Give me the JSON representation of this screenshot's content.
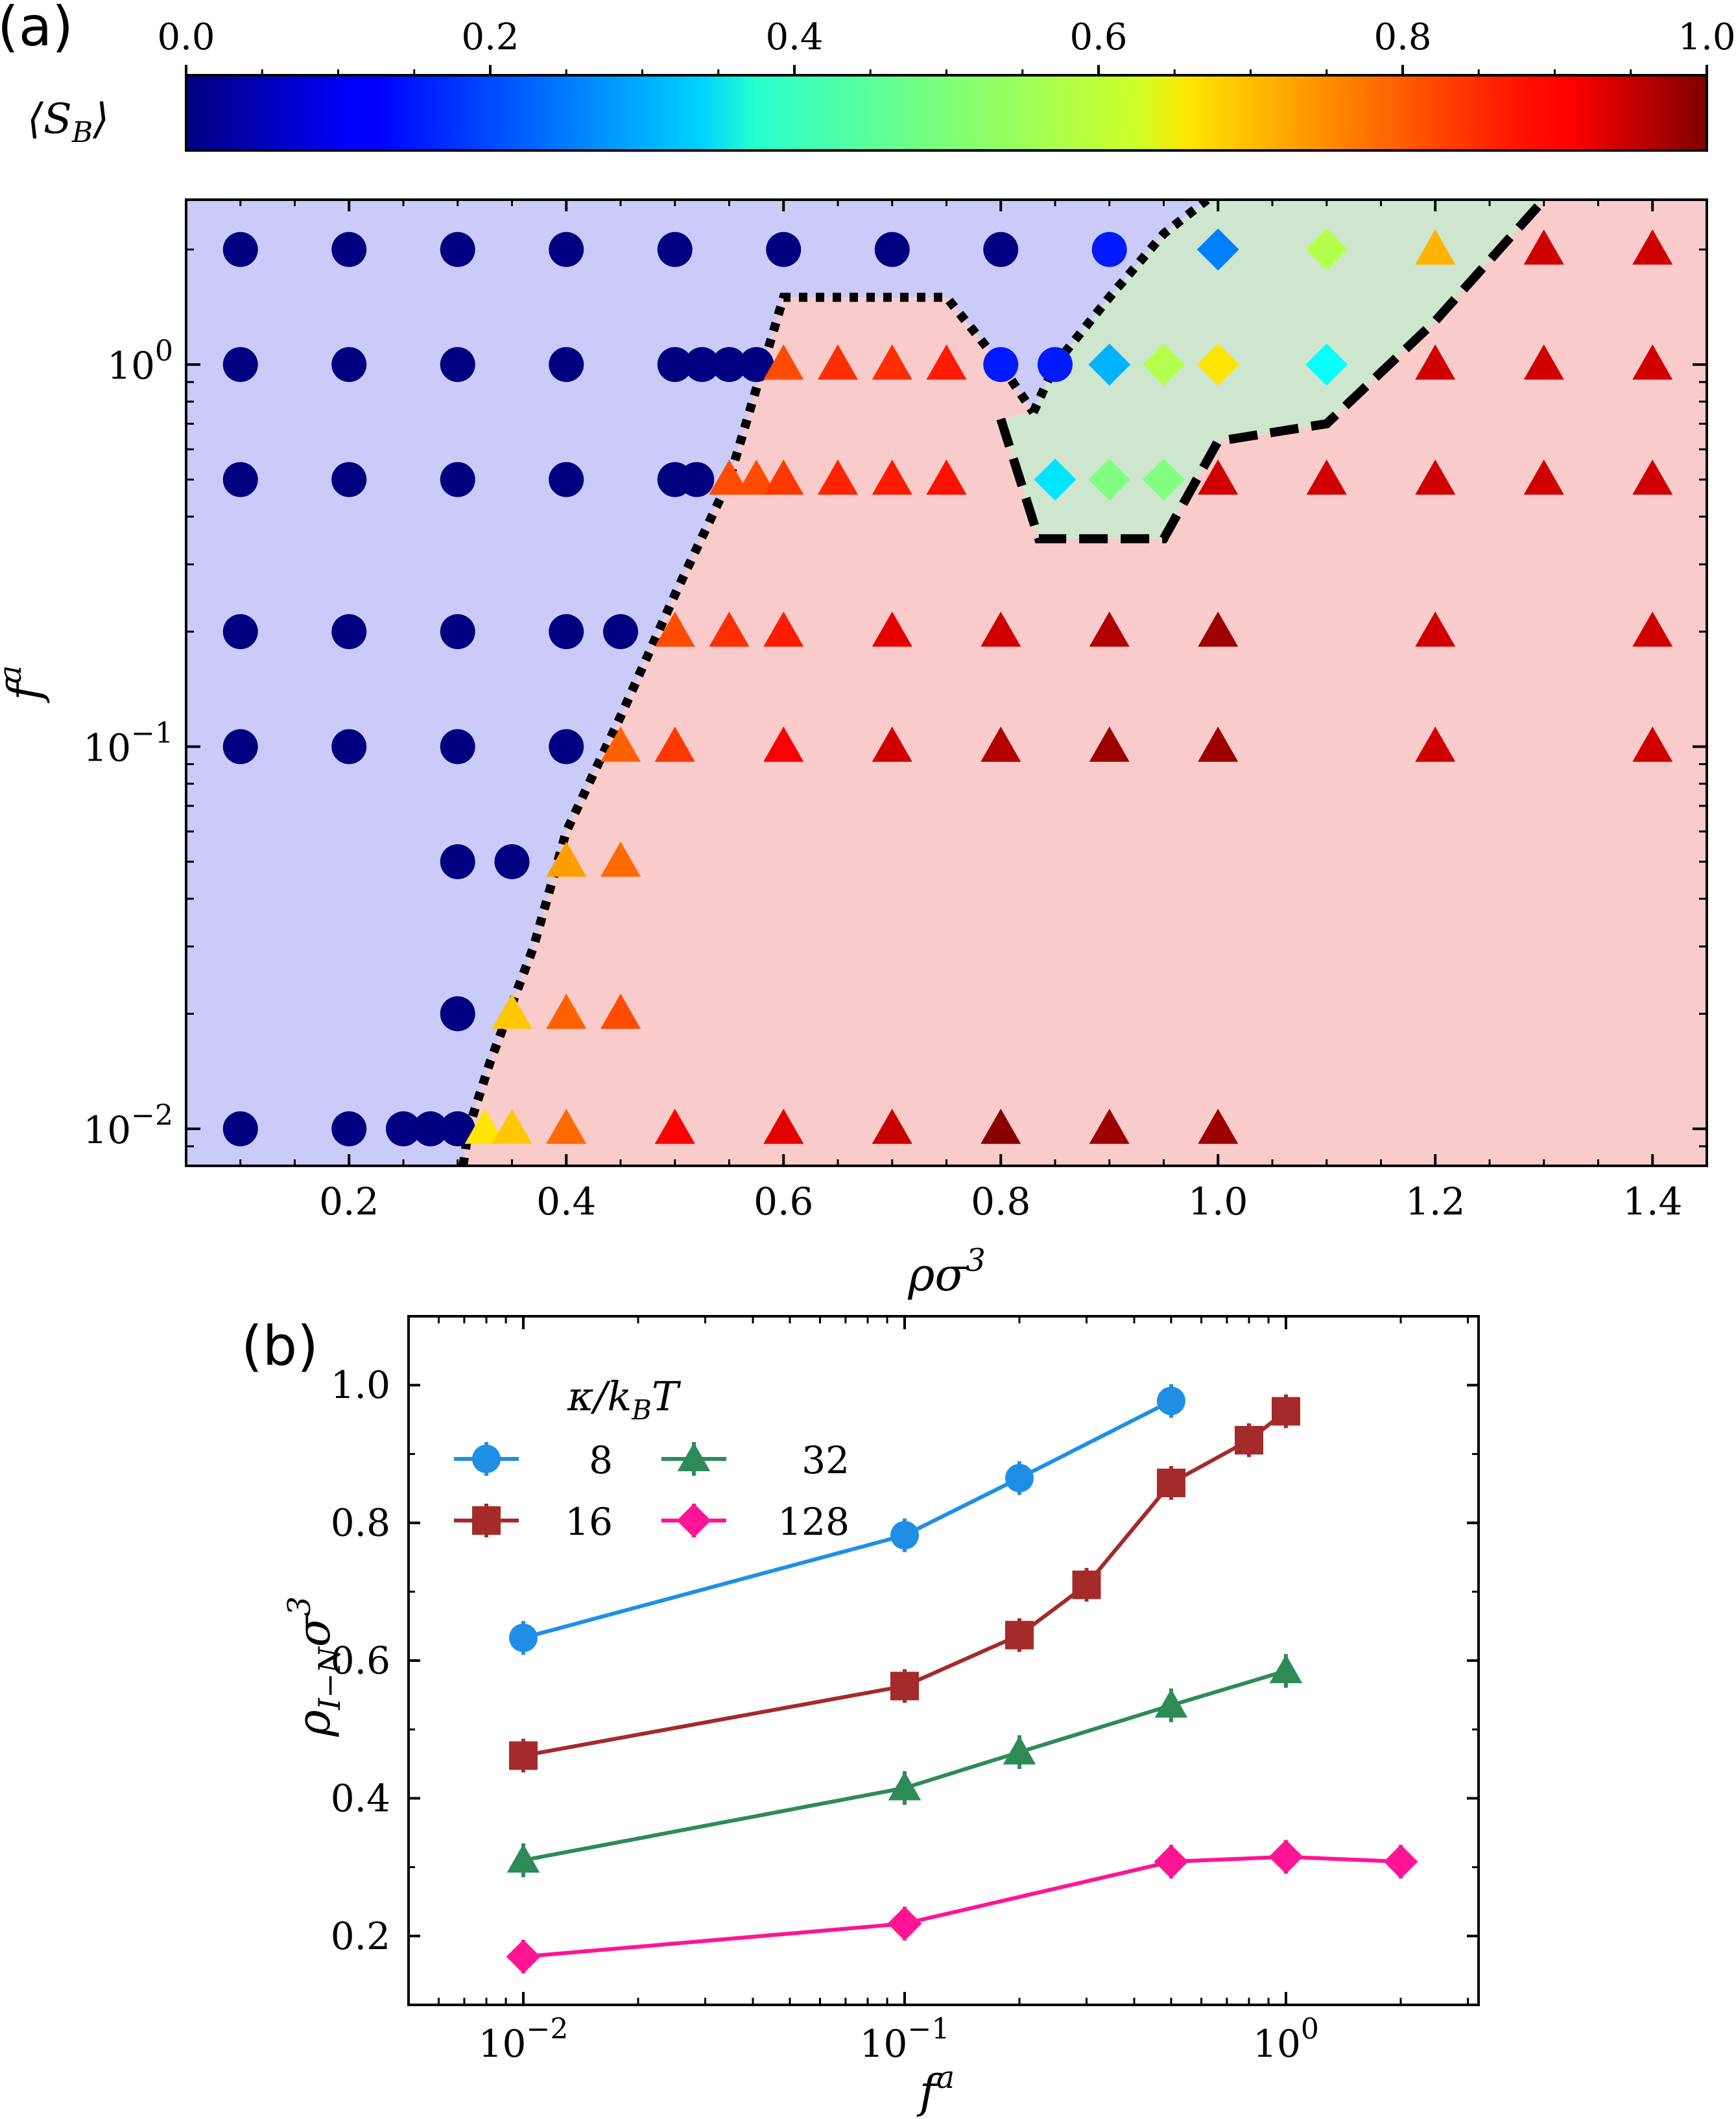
{
  "figure": {
    "panel_a_label": "(a)",
    "panel_b_label": "(b)"
  },
  "chart_data": [
    {
      "type": "scatter",
      "panel": "a",
      "title": "",
      "xlabel": "ρσ",
      "xlabel_sup": "3",
      "ylabel": "f",
      "ylabel_sup": "a",
      "xlim": [
        0.05,
        1.45
      ],
      "ylim": [
        0.008,
        2.7
      ],
      "yscale": "log",
      "x_ticks": [
        0.2,
        0.4,
        0.6,
        0.8,
        1.0,
        1.2,
        1.4
      ],
      "x_tick_labels": [
        "0.2",
        "0.4",
        "0.6",
        "0.8",
        "1.0",
        "1.2",
        "1.4"
      ],
      "y_ticks": [
        {
          "value": 0.01,
          "base": "10",
          "exp": "−2"
        },
        {
          "value": 0.1,
          "base": "10",
          "exp": "−1"
        },
        {
          "value": 1,
          "base": "10",
          "exp": "0"
        }
      ],
      "colorbar": {
        "label": "⟨S",
        "label_sub": "B",
        "label_end": "⟩",
        "range": [
          0.0,
          1.0
        ],
        "colormap": "jet",
        "ticks": [
          0.0,
          0.2,
          0.4,
          0.6,
          0.8,
          1.0
        ],
        "tick_labels": [
          "0.0",
          "0.2",
          "0.4",
          "0.6",
          "0.8",
          "1.0"
        ]
      },
      "regions": {
        "isotropic": {
          "color": "#cbcbf9"
        },
        "nematic": {
          "color": "#f9cbcb"
        },
        "smectic": {
          "color": "#cde6cd"
        }
      },
      "boundaries": {
        "isotropic_nematic": {
          "style": "dotted",
          "x": [
            0.305,
            0.31,
            0.33,
            0.37,
            0.4,
            0.45,
            0.5,
            0.55,
            0.6,
            0.75,
            0.8,
            0.83
          ],
          "y": [
            0.008,
            0.01,
            0.015,
            0.03,
            0.06,
            0.12,
            0.25,
            0.5,
            1.5,
            1.5,
            1.0,
            0.75
          ]
        },
        "upper_smectic": {
          "style": "dotted",
          "x": [
            0.83,
            0.85,
            0.9,
            0.95,
            0.99
          ],
          "y": [
            0.75,
            1.0,
            1.5,
            2.2,
            2.7
          ]
        },
        "smectic_nematic": {
          "style": "dashed",
          "x": [
            0.8,
            0.835,
            0.95,
            1.0,
            1.1,
            1.2,
            1.3
          ],
          "y": [
            0.72,
            0.35,
            0.35,
            0.63,
            0.7,
            1.3,
            2.7
          ]
        }
      },
      "points": [
        {
          "x": 0.1,
          "y": 2,
          "m": "circle",
          "s": 0.0
        },
        {
          "x": 0.2,
          "y": 2,
          "m": "circle",
          "s": 0.0
        },
        {
          "x": 0.3,
          "y": 2,
          "m": "circle",
          "s": 0.0
        },
        {
          "x": 0.4,
          "y": 2,
          "m": "circle",
          "s": 0.0
        },
        {
          "x": 0.5,
          "y": 2,
          "m": "circle",
          "s": 0.0
        },
        {
          "x": 0.6,
          "y": 2,
          "m": "circle",
          "s": 0.0
        },
        {
          "x": 0.7,
          "y": 2,
          "m": "circle",
          "s": 0.0
        },
        {
          "x": 0.8,
          "y": 2,
          "m": "circle",
          "s": 0.0
        },
        {
          "x": 0.9,
          "y": 2,
          "m": "circle",
          "s": 0.15
        },
        {
          "x": 1.0,
          "y": 2,
          "m": "diamond",
          "s": 0.25
        },
        {
          "x": 1.1,
          "y": 2,
          "m": "diamond",
          "s": 0.55
        },
        {
          "x": 1.2,
          "y": 2,
          "m": "triangle",
          "s": 0.7
        },
        {
          "x": 1.3,
          "y": 2,
          "m": "triangle",
          "s": 0.92
        },
        {
          "x": 1.4,
          "y": 2,
          "m": "triangle",
          "s": 0.92
        },
        {
          "x": 0.1,
          "y": 1,
          "m": "circle",
          "s": 0.0
        },
        {
          "x": 0.2,
          "y": 1,
          "m": "circle",
          "s": 0.0
        },
        {
          "x": 0.3,
          "y": 1,
          "m": "circle",
          "s": 0.0
        },
        {
          "x": 0.4,
          "y": 1,
          "m": "circle",
          "s": 0.0
        },
        {
          "x": 0.5,
          "y": 1,
          "m": "circle",
          "s": 0.0
        },
        {
          "x": 0.525,
          "y": 1,
          "m": "circle",
          "s": 0.0
        },
        {
          "x": 0.55,
          "y": 1,
          "m": "circle",
          "s": 0.0
        },
        {
          "x": 0.575,
          "y": 1,
          "m": "circle",
          "s": 0.0
        },
        {
          "x": 0.6,
          "y": 1,
          "m": "triangle",
          "s": 0.8
        },
        {
          "x": 0.65,
          "y": 1,
          "m": "triangle",
          "s": 0.83
        },
        {
          "x": 0.7,
          "y": 1,
          "m": "triangle",
          "s": 0.83
        },
        {
          "x": 0.75,
          "y": 1,
          "m": "triangle",
          "s": 0.85
        },
        {
          "x": 0.8,
          "y": 1,
          "m": "circle",
          "s": 0.15
        },
        {
          "x": 0.85,
          "y": 1,
          "m": "circle",
          "s": 0.15
        },
        {
          "x": 0.9,
          "y": 1,
          "m": "diamond",
          "s": 0.3
        },
        {
          "x": 0.95,
          "y": 1,
          "m": "diamond",
          "s": 0.55
        },
        {
          "x": 1.0,
          "y": 1,
          "m": "diamond",
          "s": 0.65
        },
        {
          "x": 1.1,
          "y": 1,
          "m": "diamond",
          "s": 0.38
        },
        {
          "x": 1.2,
          "y": 1,
          "m": "triangle",
          "s": 0.92
        },
        {
          "x": 1.3,
          "y": 1,
          "m": "triangle",
          "s": 0.92
        },
        {
          "x": 1.4,
          "y": 1,
          "m": "triangle",
          "s": 0.92
        },
        {
          "x": 0.1,
          "y": 0.5,
          "m": "circle",
          "s": 0.0
        },
        {
          "x": 0.2,
          "y": 0.5,
          "m": "circle",
          "s": 0.0
        },
        {
          "x": 0.3,
          "y": 0.5,
          "m": "circle",
          "s": 0.0
        },
        {
          "x": 0.4,
          "y": 0.5,
          "m": "circle",
          "s": 0.0
        },
        {
          "x": 0.5,
          "y": 0.5,
          "m": "circle",
          "s": 0.0
        },
        {
          "x": 0.52,
          "y": 0.5,
          "m": "circle",
          "s": 0.0
        },
        {
          "x": 0.55,
          "y": 0.5,
          "m": "triangle",
          "s": 0.8
        },
        {
          "x": 0.575,
          "y": 0.5,
          "m": "triangle",
          "s": 0.8
        },
        {
          "x": 0.6,
          "y": 0.5,
          "m": "triangle",
          "s": 0.82
        },
        {
          "x": 0.65,
          "y": 0.5,
          "m": "triangle",
          "s": 0.84
        },
        {
          "x": 0.7,
          "y": 0.5,
          "m": "triangle",
          "s": 0.85
        },
        {
          "x": 0.75,
          "y": 0.5,
          "m": "triangle",
          "s": 0.86
        },
        {
          "x": 0.85,
          "y": 0.5,
          "m": "diamond",
          "s": 0.35
        },
        {
          "x": 0.9,
          "y": 0.5,
          "m": "diamond",
          "s": 0.5
        },
        {
          "x": 0.95,
          "y": 0.5,
          "m": "diamond",
          "s": 0.5
        },
        {
          "x": 1.0,
          "y": 0.5,
          "m": "triangle",
          "s": 0.92
        },
        {
          "x": 1.1,
          "y": 0.5,
          "m": "triangle",
          "s": 0.92
        },
        {
          "x": 1.2,
          "y": 0.5,
          "m": "triangle",
          "s": 0.92
        },
        {
          "x": 1.3,
          "y": 0.5,
          "m": "triangle",
          "s": 0.92
        },
        {
          "x": 1.4,
          "y": 0.5,
          "m": "triangle",
          "s": 0.92
        },
        {
          "x": 0.1,
          "y": 0.2,
          "m": "circle",
          "s": 0.0
        },
        {
          "x": 0.2,
          "y": 0.2,
          "m": "circle",
          "s": 0.0
        },
        {
          "x": 0.3,
          "y": 0.2,
          "m": "circle",
          "s": 0.0
        },
        {
          "x": 0.4,
          "y": 0.2,
          "m": "circle",
          "s": 0.0
        },
        {
          "x": 0.45,
          "y": 0.2,
          "m": "circle",
          "s": 0.0
        },
        {
          "x": 0.5,
          "y": 0.2,
          "m": "triangle",
          "s": 0.8
        },
        {
          "x": 0.55,
          "y": 0.2,
          "m": "triangle",
          "s": 0.83
        },
        {
          "x": 0.6,
          "y": 0.2,
          "m": "triangle",
          "s": 0.85
        },
        {
          "x": 0.7,
          "y": 0.2,
          "m": "triangle",
          "s": 0.9
        },
        {
          "x": 0.8,
          "y": 0.2,
          "m": "triangle",
          "s": 0.92
        },
        {
          "x": 0.9,
          "y": 0.2,
          "m": "triangle",
          "s": 0.95
        },
        {
          "x": 1.0,
          "y": 0.2,
          "m": "triangle",
          "s": 0.97
        },
        {
          "x": 1.2,
          "y": 0.2,
          "m": "triangle",
          "s": 0.92
        },
        {
          "x": 1.4,
          "y": 0.2,
          "m": "triangle",
          "s": 0.92
        },
        {
          "x": 0.1,
          "y": 0.1,
          "m": "circle",
          "s": 0.0
        },
        {
          "x": 0.2,
          "y": 0.1,
          "m": "circle",
          "s": 0.0
        },
        {
          "x": 0.3,
          "y": 0.1,
          "m": "circle",
          "s": 0.0
        },
        {
          "x": 0.4,
          "y": 0.1,
          "m": "circle",
          "s": 0.0
        },
        {
          "x": 0.45,
          "y": 0.1,
          "m": "triangle",
          "s": 0.78
        },
        {
          "x": 0.5,
          "y": 0.1,
          "m": "triangle",
          "s": 0.82
        },
        {
          "x": 0.6,
          "y": 0.1,
          "m": "triangle",
          "s": 0.88
        },
        {
          "x": 0.7,
          "y": 0.1,
          "m": "triangle",
          "s": 0.92
        },
        {
          "x": 0.8,
          "y": 0.1,
          "m": "triangle",
          "s": 0.95
        },
        {
          "x": 0.9,
          "y": 0.1,
          "m": "triangle",
          "s": 0.97
        },
        {
          "x": 1.0,
          "y": 0.1,
          "m": "triangle",
          "s": 0.97
        },
        {
          "x": 1.2,
          "y": 0.1,
          "m": "triangle",
          "s": 0.92
        },
        {
          "x": 1.4,
          "y": 0.1,
          "m": "triangle",
          "s": 0.92
        },
        {
          "x": 0.3,
          "y": 0.05,
          "m": "circle",
          "s": 0.0
        },
        {
          "x": 0.35,
          "y": 0.05,
          "m": "circle",
          "s": 0.0
        },
        {
          "x": 0.4,
          "y": 0.05,
          "m": "triangle",
          "s": 0.72
        },
        {
          "x": 0.45,
          "y": 0.05,
          "m": "triangle",
          "s": 0.77
        },
        {
          "x": 0.3,
          "y": 0.02,
          "m": "circle",
          "s": 0.0
        },
        {
          "x": 0.35,
          "y": 0.02,
          "m": "triangle",
          "s": 0.68
        },
        {
          "x": 0.4,
          "y": 0.02,
          "m": "triangle",
          "s": 0.78
        },
        {
          "x": 0.45,
          "y": 0.02,
          "m": "triangle",
          "s": 0.8
        },
        {
          "x": 0.1,
          "y": 0.01,
          "m": "circle",
          "s": 0.0
        },
        {
          "x": 0.2,
          "y": 0.01,
          "m": "circle",
          "s": 0.0
        },
        {
          "x": 0.25,
          "y": 0.01,
          "m": "circle",
          "s": 0.0
        },
        {
          "x": 0.275,
          "y": 0.01,
          "m": "circle",
          "s": 0.0
        },
        {
          "x": 0.3,
          "y": 0.01,
          "m": "circle",
          "s": 0.0
        },
        {
          "x": 0.325,
          "y": 0.01,
          "m": "triangle",
          "s": 0.65
        },
        {
          "x": 0.35,
          "y": 0.01,
          "m": "triangle",
          "s": 0.68
        },
        {
          "x": 0.4,
          "y": 0.01,
          "m": "triangle",
          "s": 0.77
        },
        {
          "x": 0.5,
          "y": 0.01,
          "m": "triangle",
          "s": 0.88
        },
        {
          "x": 0.6,
          "y": 0.01,
          "m": "triangle",
          "s": 0.9
        },
        {
          "x": 0.7,
          "y": 0.01,
          "m": "triangle",
          "s": 0.93
        },
        {
          "x": 0.8,
          "y": 0.01,
          "m": "triangle",
          "s": 0.99
        },
        {
          "x": 0.9,
          "y": 0.01,
          "m": "triangle",
          "s": 0.97
        },
        {
          "x": 1.0,
          "y": 0.01,
          "m": "triangle",
          "s": 0.97
        }
      ]
    },
    {
      "type": "line",
      "panel": "b",
      "title": "",
      "xlabel": "f",
      "xlabel_sup": "a",
      "ylabel": "ρ",
      "ylabel_sub": "I−N",
      "ylabel_end": "σ",
      "ylabel_sup": "3",
      "xscale": "log",
      "xlim": [
        0.005,
        3.2
      ],
      "ylim": [
        0.1,
        1.1
      ],
      "x_ticks": [
        {
          "value": 0.01,
          "base": "10",
          "exp": "−2"
        },
        {
          "value": 0.1,
          "base": "10",
          "exp": "−1"
        },
        {
          "value": 1,
          "base": "10",
          "exp": "0"
        }
      ],
      "y_ticks": [
        0.2,
        0.4,
        0.6,
        0.8,
        1.0
      ],
      "y_tick_labels": [
        "0.2",
        "0.4",
        "0.6",
        "0.8",
        "1.0"
      ],
      "legend": {
        "title": "κ/k",
        "title_sub": "B",
        "title_end": "T",
        "placement": "top-left"
      },
      "series": [
        {
          "name": "8",
          "color": "#1f8fe6",
          "marker": "circle",
          "x": [
            0.01,
            0.1,
            0.2,
            0.5
          ],
          "y": [
            0.633,
            0.782,
            0.865,
            0.977
          ]
        },
        {
          "name": "16",
          "color": "#a52a2a",
          "marker": "square",
          "x": [
            0.01,
            0.1,
            0.2,
            0.3,
            0.5,
            0.8,
            1.0
          ],
          "y": [
            0.462,
            0.563,
            0.637,
            0.71,
            0.858,
            0.92,
            0.962
          ]
        },
        {
          "name": "32",
          "color": "#2e8b57",
          "marker": "triangle",
          "x": [
            0.01,
            0.1,
            0.2,
            0.5,
            1.0
          ],
          "y": [
            0.31,
            0.415,
            0.467,
            0.535,
            0.585
          ]
        },
        {
          "name": "128",
          "color": "#ff1493",
          "marker": "diamond",
          "x": [
            0.01,
            0.1,
            0.5,
            1.0,
            2.0
          ],
          "y": [
            0.17,
            0.218,
            0.308,
            0.315,
            0.308
          ]
        }
      ]
    }
  ]
}
